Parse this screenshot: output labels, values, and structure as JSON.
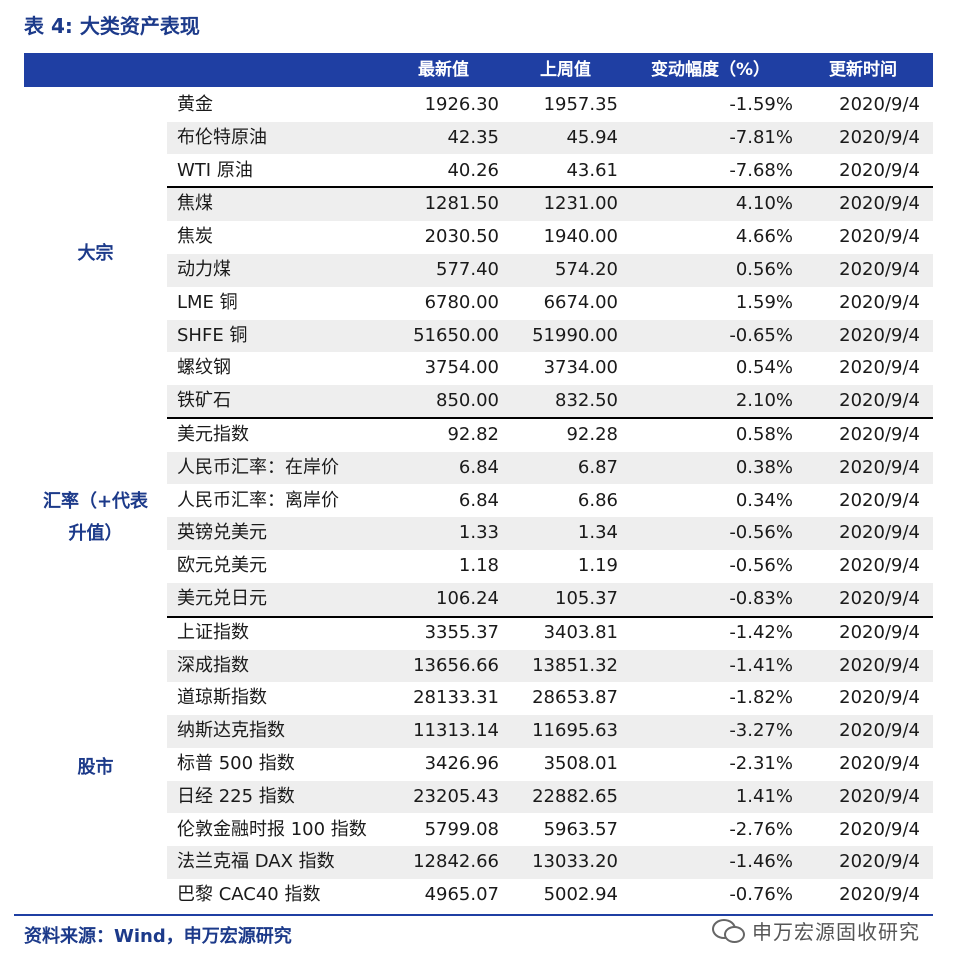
{
  "title": "表 4:  大类资产表现",
  "columns": {
    "latest": "最新值",
    "prev": "上周值",
    "change": "变动幅度（%）",
    "updated": "更新时间"
  },
  "groups": [
    {
      "label": "大宗",
      "lines": [
        "大宗"
      ]
    },
    {
      "label": "汇率（+代表升值）",
      "lines": [
        "汇率（+代表",
        "升值）"
      ]
    },
    {
      "label": "股市",
      "lines": [
        "股市"
      ]
    }
  ],
  "rows": [
    {
      "name": "黄金",
      "latest": "1926.30",
      "prev": "1957.35",
      "change": "-1.59%",
      "date": "2020/9/4"
    },
    {
      "name": "布伦特原油",
      "latest": "42.35",
      "prev": "45.94",
      "change": "-7.81%",
      "date": "2020/9/4"
    },
    {
      "name": "WTI 原油",
      "latest": "40.26",
      "prev": "43.61",
      "change": "-7.68%",
      "date": "2020/9/4"
    },
    {
      "name": "焦煤",
      "latest": "1281.50",
      "prev": "1231.00",
      "change": "4.10%",
      "date": "2020/9/4"
    },
    {
      "name": "焦炭",
      "latest": "2030.50",
      "prev": "1940.00",
      "change": "4.66%",
      "date": "2020/9/4"
    },
    {
      "name": "动力煤",
      "latest": "577.40",
      "prev": "574.20",
      "change": "0.56%",
      "date": "2020/9/4"
    },
    {
      "name": "LME 铜",
      "latest": "6780.00",
      "prev": "6674.00",
      "change": "1.59%",
      "date": "2020/9/4"
    },
    {
      "name": "SHFE 铜",
      "latest": "51650.00",
      "prev": "51990.00",
      "change": "-0.65%",
      "date": "2020/9/4"
    },
    {
      "name": "螺纹钢",
      "latest": "3754.00",
      "prev": "3734.00",
      "change": "0.54%",
      "date": "2020/9/4"
    },
    {
      "name": "铁矿石",
      "latest": "850.00",
      "prev": "832.50",
      "change": "2.10%",
      "date": "2020/9/4"
    },
    {
      "name": "美元指数",
      "latest": "92.82",
      "prev": "92.28",
      "change": "0.58%",
      "date": "2020/9/4"
    },
    {
      "name": "人民币汇率：在岸价",
      "latest": "6.84",
      "prev": "6.87",
      "change": "0.38%",
      "date": "2020/9/4"
    },
    {
      "name": "人民币汇率：离岸价",
      "latest": "6.84",
      "prev": "6.86",
      "change": "0.34%",
      "date": "2020/9/4"
    },
    {
      "name": "英镑兑美元",
      "latest": "1.33",
      "prev": "1.34",
      "change": "-0.56%",
      "date": "2020/9/4"
    },
    {
      "name": "欧元兑美元",
      "latest": "1.18",
      "prev": "1.19",
      "change": "-0.56%",
      "date": "2020/9/4"
    },
    {
      "name": "美元兑日元",
      "latest": "106.24",
      "prev": "105.37",
      "change": "-0.83%",
      "date": "2020/9/4"
    },
    {
      "name": "上证指数",
      "latest": "3355.37",
      "prev": "3403.81",
      "change": "-1.42%",
      "date": "2020/9/4"
    },
    {
      "name": "深成指数",
      "latest": "13656.66",
      "prev": "13851.32",
      "change": "-1.41%",
      "date": "2020/9/4"
    },
    {
      "name": "道琼斯指数",
      "latest": "28133.31",
      "prev": "28653.87",
      "change": "-1.82%",
      "date": "2020/9/4"
    },
    {
      "name": "纳斯达克指数",
      "latest": "11313.14",
      "prev": "11695.63",
      "change": "-3.27%",
      "date": "2020/9/4"
    },
    {
      "name": "标普 500 指数",
      "latest": "3426.96",
      "prev": "3508.01",
      "change": "-2.31%",
      "date": "2020/9/4"
    },
    {
      "name": "日经 225 指数",
      "latest": "23205.43",
      "prev": "22882.65",
      "change": "1.41%",
      "date": "2020/9/4"
    },
    {
      "name": "伦敦金融时报 100 指数",
      "latest": "5799.08",
      "prev": "5963.57",
      "change": "-2.76%",
      "date": "2020/9/4"
    },
    {
      "name": "法兰克福 DAX 指数",
      "latest": "12842.66",
      "prev": "13033.20",
      "change": "-1.46%",
      "date": "2020/9/4"
    },
    {
      "name": "巴黎 CAC40 指数",
      "latest": "4965.07",
      "prev": "5002.94",
      "change": "-0.76%",
      "date": "2020/9/4"
    }
  ],
  "source": "资料来源：Wind，申万宏源研究",
  "watermark": "申万宏源固收研究"
}
